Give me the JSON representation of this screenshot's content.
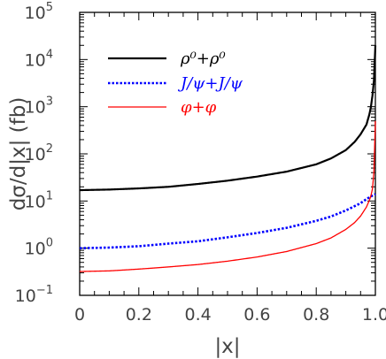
{
  "chart_data": {
    "type": "line",
    "xlabel": "|x|",
    "ylabel": "dσ/d|x| (fb)",
    "xlim": [
      0,
      1
    ],
    "ylim": [
      0.1,
      100000
    ],
    "yscale": "log",
    "grid": false,
    "legend_position": "top-left",
    "x_ticks": [
      "0",
      "0.2",
      "0.4",
      "0.6",
      "0.8",
      "1.0"
    ],
    "y_ticks": [
      {
        "base": "10",
        "exp": "−1"
      },
      {
        "base": "10",
        "exp": "0"
      },
      {
        "base": "10",
        "exp": "1"
      },
      {
        "base": "10",
        "exp": "2"
      },
      {
        "base": "10",
        "exp": "3"
      },
      {
        "base": "10",
        "exp": "4"
      },
      {
        "base": "10",
        "exp": "5"
      }
    ],
    "series": [
      {
        "name": "ρ⁰+ρ⁰",
        "color": "#000000",
        "style": "solid",
        "x": [
          0,
          0.1,
          0.2,
          0.3,
          0.4,
          0.5,
          0.6,
          0.7,
          0.8,
          0.85,
          0.9,
          0.93,
          0.95,
          0.97,
          0.98,
          0.985,
          0.99,
          0.995,
          1.0
        ],
        "y": [
          17,
          17.5,
          18.5,
          20,
          23,
          27,
          33,
          42,
          60,
          80,
          120,
          180,
          260,
          420,
          700,
          1000,
          1700,
          3500,
          20000
        ]
      },
      {
        "name": "J/ψ+J/ψ",
        "color": "#0000ff",
        "style": "dotted",
        "x": [
          0,
          0.1,
          0.2,
          0.3,
          0.4,
          0.5,
          0.6,
          0.7,
          0.8,
          0.85,
          0.9,
          0.93,
          0.95,
          0.97,
          0.98,
          0.99,
          1.0
        ],
        "y": [
          1.0,
          1.03,
          1.1,
          1.25,
          1.4,
          1.7,
          2.1,
          2.7,
          3.8,
          4.7,
          6.3,
          7.8,
          9,
          11,
          12,
          13,
          14
        ]
      },
      {
        "name": "φ+φ",
        "color": "#ff0000",
        "style": "solid",
        "x": [
          0,
          0.1,
          0.2,
          0.3,
          0.4,
          0.5,
          0.6,
          0.7,
          0.8,
          0.85,
          0.9,
          0.93,
          0.95,
          0.97,
          0.98,
          0.985,
          0.99,
          0.995,
          1.0
        ],
        "y": [
          0.32,
          0.33,
          0.36,
          0.4,
          0.45,
          0.53,
          0.65,
          0.85,
          1.25,
          1.65,
          2.5,
          3.5,
          4.8,
          7.5,
          10.5,
          13,
          18,
          40,
          500
        ]
      }
    ]
  }
}
